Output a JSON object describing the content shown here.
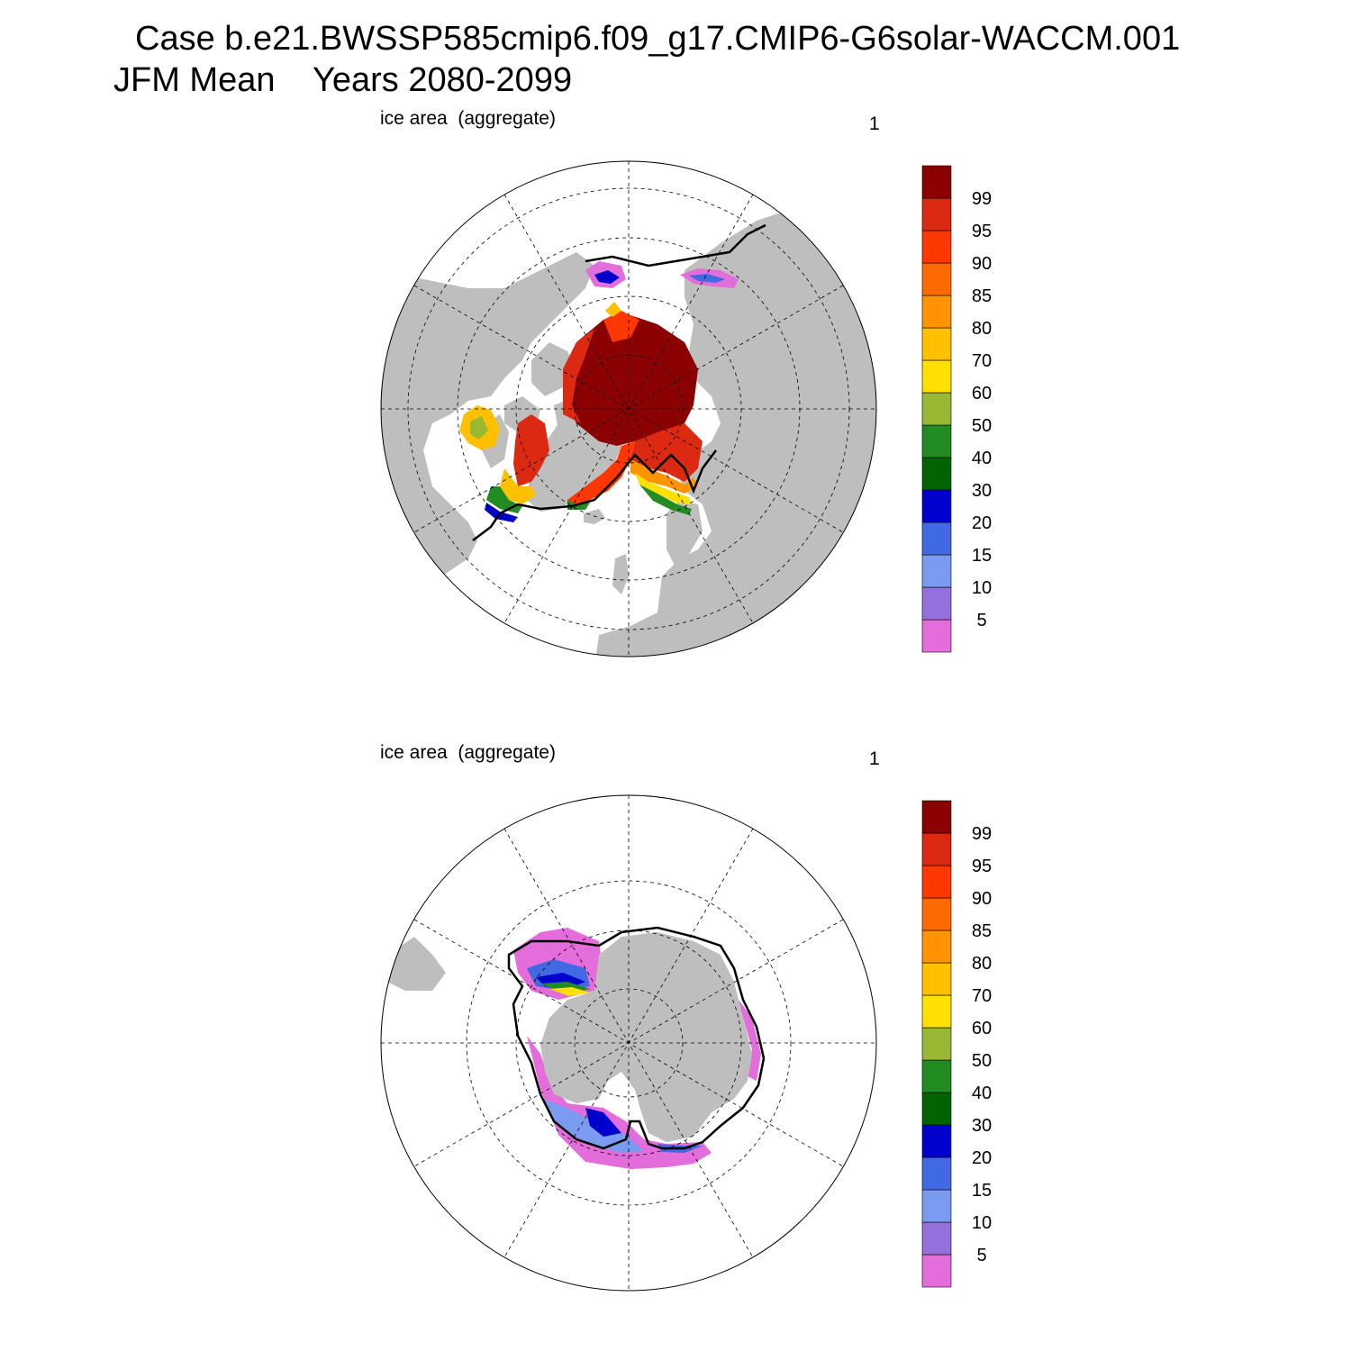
{
  "title": {
    "line1": "Case b.e21.BWSSP585cmip6.f09_g17.CMIP6-G6solar-WACCM.001",
    "line2": "JFM Mean    Years 2080-2099"
  },
  "panels": [
    {
      "name": "north",
      "variable_label": "ice area  (aggregate)",
      "panel_number": "1"
    },
    {
      "name": "south",
      "variable_label": "ice area  (aggregate)",
      "panel_number": "1"
    }
  ],
  "colorbar": {
    "colors": [
      "#e36ddb",
      "#9370db",
      "#7b9bf0",
      "#4169e1",
      "#0000cd",
      "#006400",
      "#228b22",
      "#9ab833",
      "#ffe000",
      "#ffc000",
      "#ff9400",
      "#ff6a00",
      "#ff3700",
      "#dc2a12",
      "#8b0000"
    ],
    "labels": [
      "5",
      "10",
      "15",
      "20",
      "30",
      "40",
      "50",
      "60",
      "70",
      "80",
      "85",
      "90",
      "95",
      "99"
    ]
  },
  "map_colors": {
    "land": "#bebebe",
    "ocean": "#ffffff",
    "contour": "#000000"
  }
}
